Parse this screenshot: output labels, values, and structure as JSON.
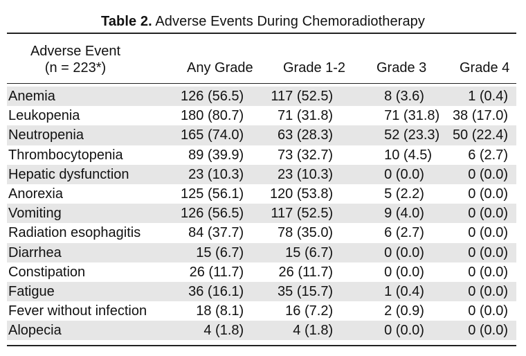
{
  "title": {
    "bold": "Table 2.",
    "text": "Adverse Events During Chemoradiotherapy"
  },
  "header": {
    "event_line1": "Adverse Event",
    "event_line2": "(n = 223*)",
    "columns": [
      "Any Grade",
      "Grade 1-2",
      "Grade 3",
      "Grade 4"
    ]
  },
  "rows": [
    {
      "event": "Anemia",
      "values": [
        "126 (56.5)",
        "117 (52.5)",
        "8 (3.6)",
        "1 (0.4)"
      ]
    },
    {
      "event": "Leukopenia",
      "values": [
        "180 (80.7)",
        "71 (31.8)",
        "71 (31.8)",
        "38 (17.0)"
      ]
    },
    {
      "event": "Neutropenia",
      "values": [
        "165 (74.0)",
        "63 (28.3)",
        "52 (23.3)",
        "50 (22.4)"
      ]
    },
    {
      "event": "Thrombocytopenia",
      "values": [
        "89 (39.9)",
        "73 (32.7)",
        "10 (4.5)",
        "6 (2.7)"
      ]
    },
    {
      "event": "Hepatic dysfunction",
      "values": [
        "23 (10.3)",
        "23 (10.3)",
        "0 (0.0)",
        "0 (0.0)"
      ]
    },
    {
      "event": "Anorexia",
      "values": [
        "125 (56.1)",
        "120 (53.8)",
        "5 (2.2)",
        "0 (0.0)"
      ]
    },
    {
      "event": "Vomiting",
      "values": [
        "126 (56.5)",
        "117 (52.5)",
        "9 (4.0)",
        "0 (0.0)"
      ]
    },
    {
      "event": "Radiation esophagitis",
      "values": [
        "84 (37.7)",
        "78 (35.0)",
        "6 (2.7)",
        "0 (0.0)"
      ]
    },
    {
      "event": "Diarrhea",
      "values": [
        "15 (6.7)",
        "15 (6.7)",
        "0 (0.0)",
        "0 (0.0)"
      ]
    },
    {
      "event": "Constipation",
      "values": [
        "26 (11.7)",
        "26 (11.7)",
        "0 (0.0)",
        "0 (0.0)"
      ]
    },
    {
      "event": "Fatigue",
      "values": [
        "36 (16.1)",
        "35 (15.7)",
        "1 (0.4)",
        "0 (0.0)"
      ]
    },
    {
      "event": "Fever without infection",
      "values": [
        "18 (8.1)",
        "16 (7.2)",
        "2 (0.9)",
        "0 (0.0)"
      ]
    },
    {
      "event": "Alopecia",
      "values": [
        "4 (1.8)",
        "4 (1.8)",
        "0 (0.0)",
        "0 (0.0)"
      ]
    }
  ],
  "colors": {
    "shade": "#e6e6e6",
    "rule": "#222222"
  }
}
